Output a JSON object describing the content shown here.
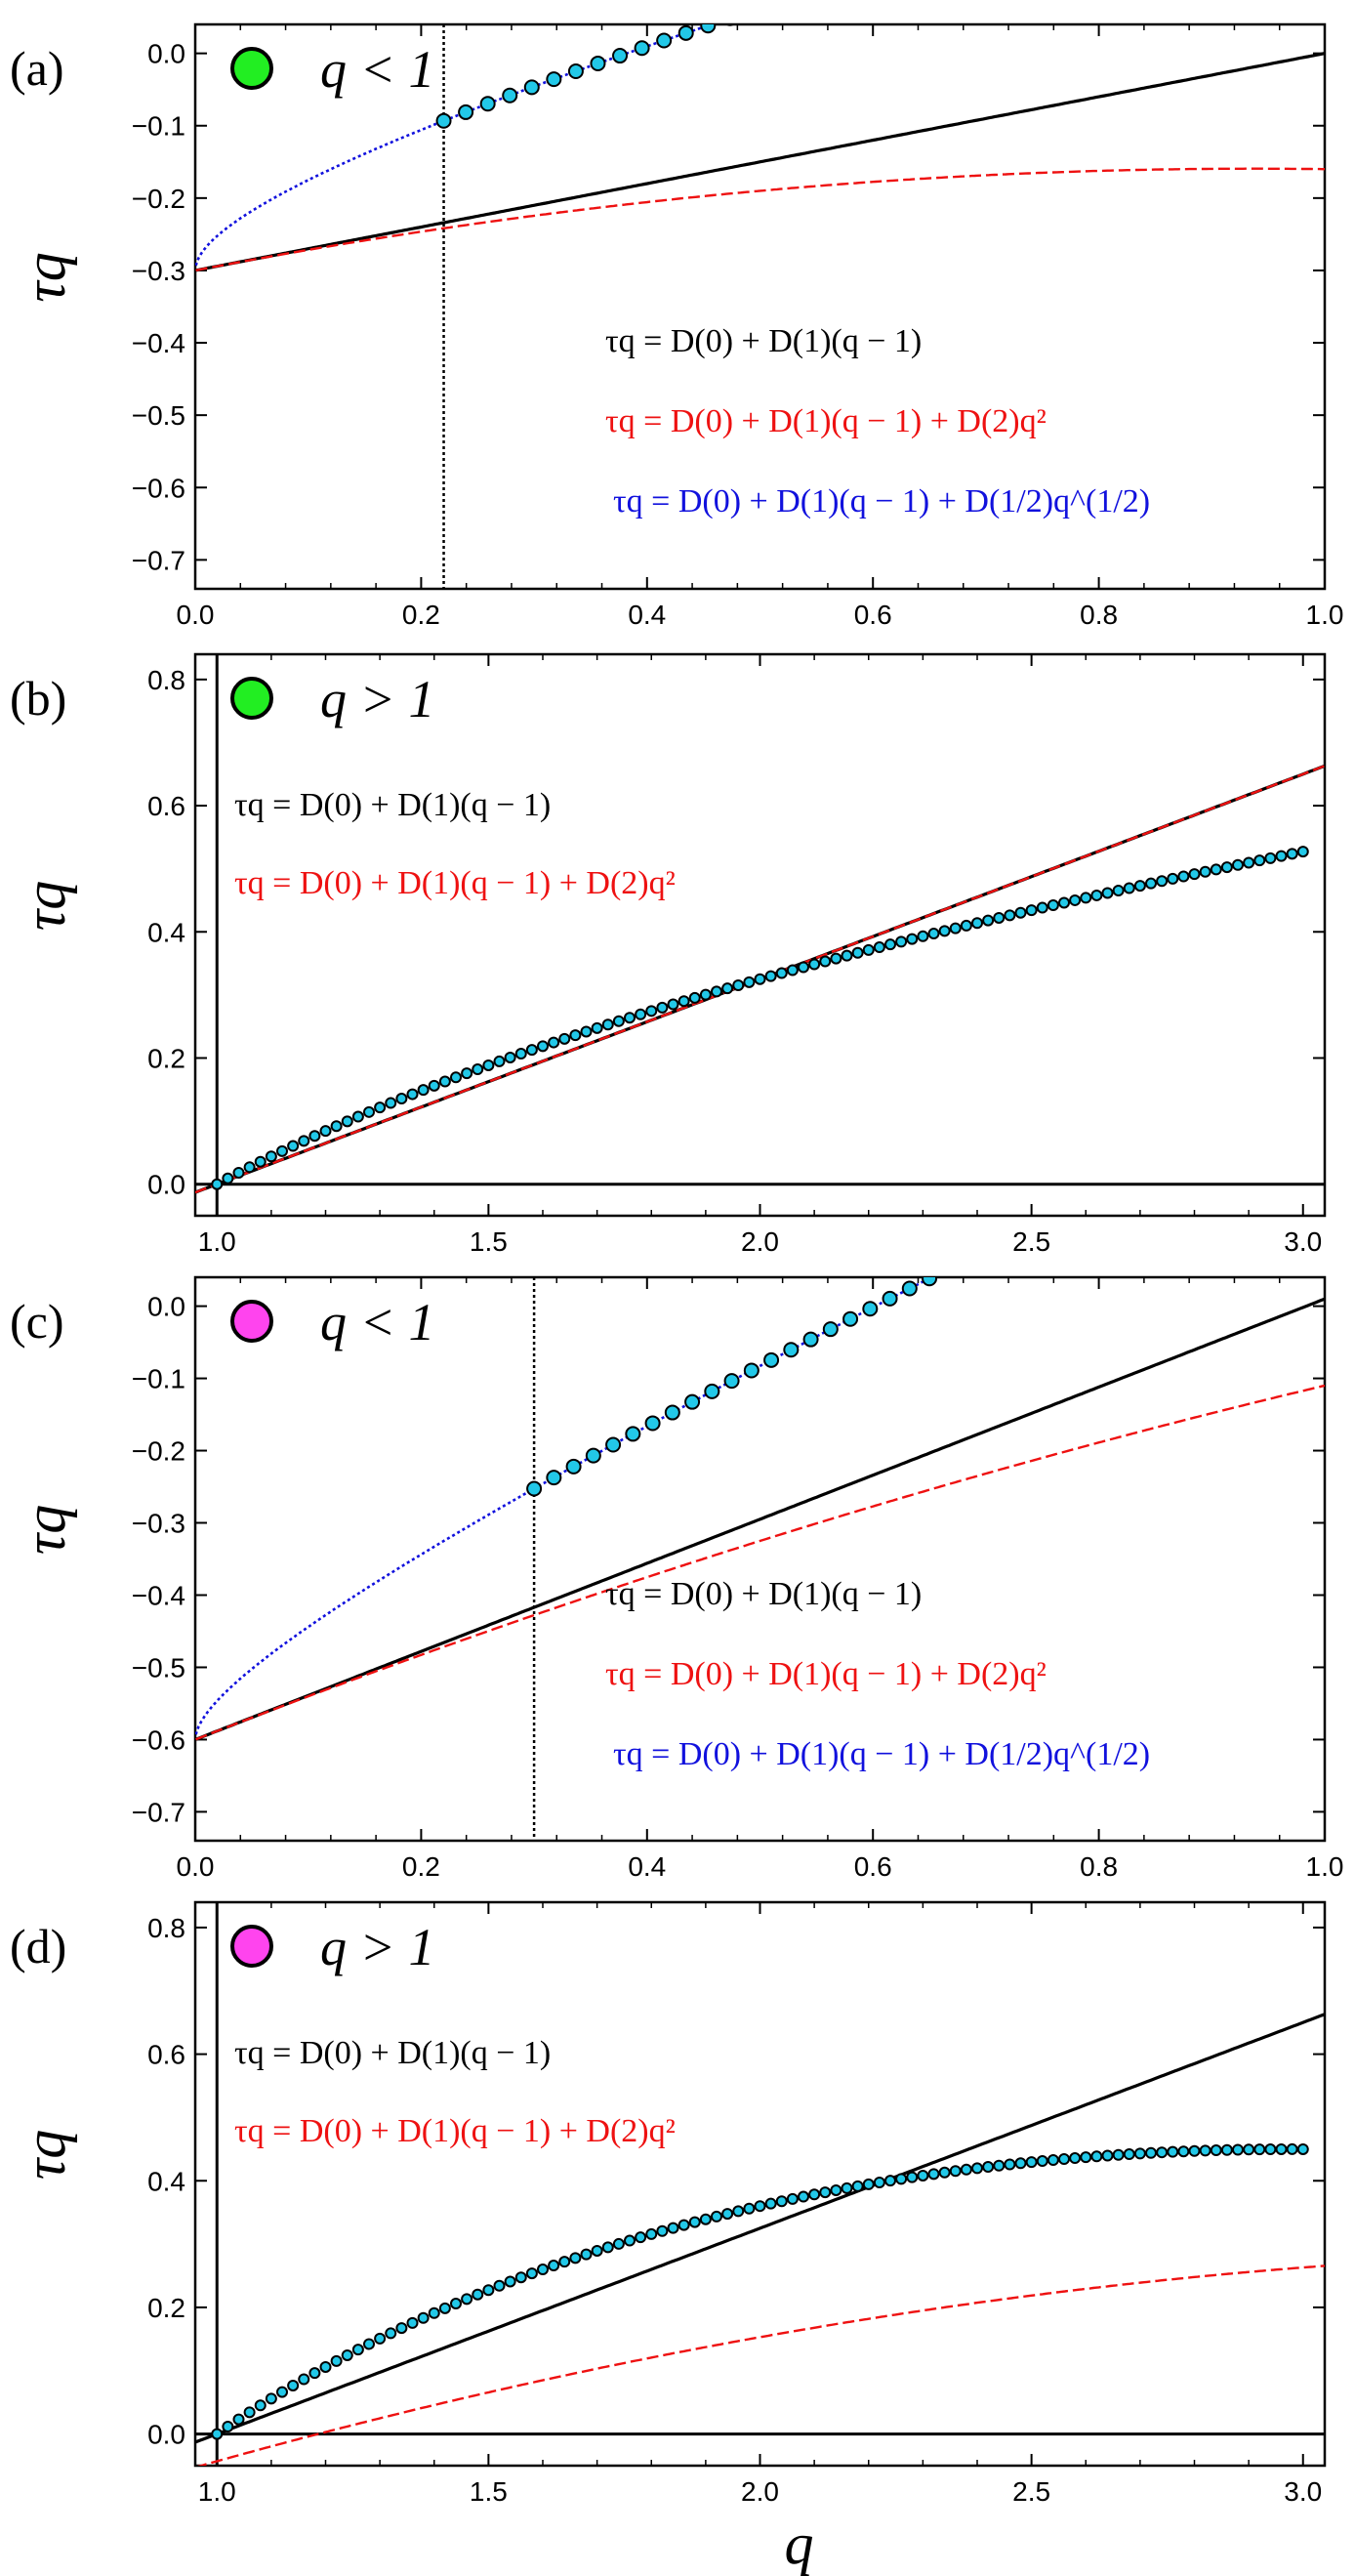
{
  "chart_data": [
    {
      "type": "line",
      "panel_label": "(a)",
      "marker_color": "#22ee22",
      "legend_label": "q < 1",
      "xlabel": "",
      "ylabel": "τq",
      "xlim": [
        0.0,
        1.0
      ],
      "ylim": [
        -0.74,
        0.04
      ],
      "x_ticks": [
        0.0,
        0.2,
        0.4,
        0.6,
        0.8,
        1.0
      ],
      "x_tick_labels": [
        "0.0",
        "0.2",
        "0.4",
        "0.6",
        "0.8",
        "1.0"
      ],
      "y_ticks": [
        0.0,
        -0.1,
        -0.2,
        -0.3,
        -0.4,
        -0.5,
        -0.6,
        -0.7
      ],
      "y_tick_labels": [
        "0.0",
        "−0.1",
        "−0.2",
        "−0.3",
        "−0.4",
        "−0.5",
        "−0.6",
        "−0.7"
      ],
      "vline": 0.22,
      "fit_from": 0.22,
      "coef": {
        "D0": 0.0,
        "D1": 0.3,
        "D2": -0.16,
        "Dh": 0.3
      },
      "series": [
        {
          "name": "linear",
          "kind": "linear",
          "color": "#000000"
        },
        {
          "name": "quadratic",
          "kind": "quadratic",
          "color": "#ee1111"
        },
        {
          "name": "sqrt",
          "kind": "sqrt",
          "color": "#1111dd"
        }
      ],
      "formulas": [
        {
          "text": "τq = D(0) + D(1)(q − 1)",
          "color": "#000000"
        },
        {
          "text": "τq = D(0) + D(1)(q − 1) + D(2)q²",
          "color": "#ee1111"
        },
        {
          "text": "τq = D(0) + D(1)(q − 1) + D(1/2)q^(1/2)",
          "color": "#1111dd"
        }
      ]
    },
    {
      "type": "line",
      "panel_label": "(b)",
      "marker_color": "#22ee22",
      "legend_label": "q > 1",
      "xlabel": "",
      "ylabel": "τq",
      "xlim": [
        0.96,
        3.04
      ],
      "ylim": [
        -0.05,
        0.84
      ],
      "x_ticks": [
        1.0,
        1.5,
        2.0,
        2.5,
        3.0
      ],
      "x_tick_labels": [
        "1.0",
        "1.5",
        "2.0",
        "2.5",
        "3.0"
      ],
      "y_ticks": [
        0.0,
        0.2,
        0.4,
        0.6,
        0.8
      ],
      "y_tick_labels": [
        "0.0",
        "0.2",
        "0.4",
        "0.6",
        "0.8"
      ],
      "data_fn": {
        "a": 0.32,
        "b": 0.005
      },
      "coef": {
        "D0": 0.0,
        "D1": 0.325,
        "D2": 0.0
      },
      "series": [
        {
          "name": "linear",
          "kind": "linear",
          "color": "#000000"
        },
        {
          "name": "quadratic",
          "kind": "quadratic",
          "color": "#ee1111"
        }
      ],
      "formulas": [
        {
          "text": "τq = D(0) + D(1)(q − 1)",
          "color": "#000000"
        },
        {
          "text": "τq = D(0) + D(1)(q − 1) + D(2)q²",
          "color": "#ee1111"
        }
      ]
    },
    {
      "type": "line",
      "panel_label": "(c)",
      "marker_color": "#ff44ee",
      "legend_label": "q < 1",
      "xlabel": "",
      "ylabel": "τq",
      "xlim": [
        0.0,
        1.0
      ],
      "ylim": [
        -0.74,
        0.04
      ],
      "x_ticks": [
        0.0,
        0.2,
        0.4,
        0.6,
        0.8,
        1.0
      ],
      "x_tick_labels": [
        "0.0",
        "0.2",
        "0.4",
        "0.6",
        "0.8",
        "1.0"
      ],
      "y_ticks": [
        0.0,
        -0.1,
        -0.2,
        -0.3,
        -0.4,
        -0.5,
        -0.6,
        -0.7
      ],
      "y_tick_labels": [
        "0.0",
        "−0.1",
        "−0.2",
        "−0.3",
        "−0.4",
        "−0.5",
        "−0.6",
        "−0.7"
      ],
      "vline": 0.3,
      "fit_from": 0.3,
      "coef": {
        "D0": 0.01,
        "D1": 0.61,
        "D2": -0.12,
        "Dh": 0.3
      },
      "series": [
        {
          "name": "linear",
          "kind": "linear",
          "color": "#000000"
        },
        {
          "name": "quadratic",
          "kind": "quadratic",
          "color": "#ee1111"
        },
        {
          "name": "sqrt",
          "kind": "sqrt",
          "color": "#1111dd"
        }
      ],
      "formulas": [
        {
          "text": "τq = D(0) + D(1)(q − 1)",
          "color": "#000000"
        },
        {
          "text": "τq = D(0) + D(1)(q − 1) + D(2)q²",
          "color": "#ee1111"
        },
        {
          "text": "τq = D(0) + D(1)(q − 1) + D(1/2)q^(1/2)",
          "color": "#1111dd"
        }
      ]
    },
    {
      "type": "line",
      "panel_label": "(d)",
      "marker_color": "#ff44ee",
      "legend_label": "q > 1",
      "xlabel": "q",
      "ylabel": "τq",
      "xlim": [
        0.96,
        3.04
      ],
      "ylim": [
        -0.05,
        0.84
      ],
      "x_ticks": [
        1.0,
        1.5,
        2.0,
        2.5,
        3.0
      ],
      "x_tick_labels": [
        "1.0",
        "1.5",
        "2.0",
        "2.5",
        "3.0"
      ],
      "y_ticks": [
        0.0,
        0.2,
        0.4,
        0.6,
        0.8
      ],
      "y_tick_labels": [
        "0.0",
        "0.2",
        "0.4",
        "0.6",
        "0.8"
      ],
      "data_fn": {
        "a": 0.41,
        "b": -0.05
      },
      "coef": {
        "D0": 0.0,
        "D1": 0.325,
        "D2": -0.043
      },
      "series": [
        {
          "name": "linear",
          "kind": "linear",
          "color": "#000000"
        },
        {
          "name": "quadratic",
          "kind": "quadratic",
          "color": "#ee1111"
        }
      ],
      "formulas": [
        {
          "text": "τq = D(0) + D(1)(q − 1)",
          "color": "#000000"
        },
        {
          "text": "τq = D(0) + D(1)(q − 1) + D(2)q²",
          "color": "#ee1111"
        }
      ]
    }
  ]
}
